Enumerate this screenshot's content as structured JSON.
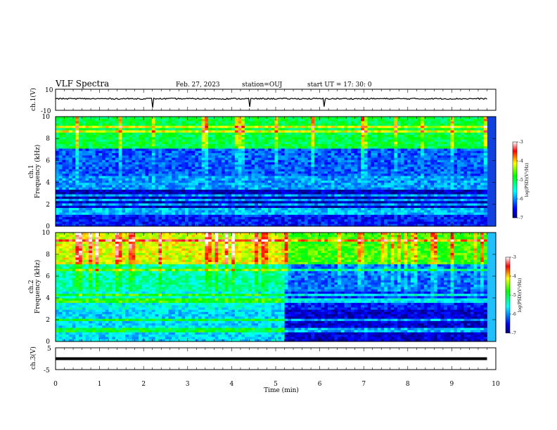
{
  "header": {
    "title": "VLF Spectra",
    "date": "Feb. 27, 2023",
    "station": "station=OUJ",
    "start": "start UT =  17: 30: 0"
  },
  "colors": {
    "low": "#000080",
    "mid_low": "#0000ff",
    "mid": "#00ffff",
    "mid_high": "#00ff00",
    "high": "#ffff00",
    "peak": "#ff0000",
    "top": "#ffffff"
  },
  "chart_data": [
    {
      "type": "line",
      "ylabel": "ch.1(V)",
      "ylim": [
        -10,
        10
      ],
      "y_ticks": [
        "10",
        "-10"
      ],
      "baseline": 1.0
    },
    {
      "type": "heatmap",
      "ylabel": [
        "ch.1",
        "Frequency (kHz)"
      ],
      "ylim": [
        0,
        10
      ],
      "y_ticks": [
        "0",
        "2",
        "4",
        "6",
        "8",
        "10"
      ],
      "colorbar": {
        "label": "log(PSD)(V²/Hz)",
        "ticks": [
          "-3",
          "-4",
          "-5",
          "-6",
          "-7"
        ],
        "range": [
          -7,
          -3
        ]
      }
    },
    {
      "type": "heatmap",
      "ylabel": [
        "ch.2",
        "Frequency (kHz)"
      ],
      "ylim": [
        0,
        10
      ],
      "y_ticks": [
        "0",
        "2",
        "4",
        "6",
        "8",
        "10"
      ],
      "colorbar": {
        "label": "log(PSD)(V²/Hz)",
        "ticks": [
          "-3",
          "-4",
          "-5",
          "-6",
          "-7"
        ],
        "range": [
          -7,
          -3
        ]
      }
    },
    {
      "type": "line",
      "ylabel": "ch.3(V)",
      "ylim": [
        -5,
        5
      ],
      "y_ticks": [
        "5",
        "0",
        "-5"
      ],
      "baseline": 0.0
    }
  ],
  "x_axis": {
    "label": "Time (min)",
    "range": [
      0,
      10
    ],
    "ticks": [
      "0",
      "1",
      "2",
      "3",
      "4",
      "5",
      "6",
      "7",
      "8",
      "9",
      "10"
    ],
    "data_end": 9.8
  }
}
